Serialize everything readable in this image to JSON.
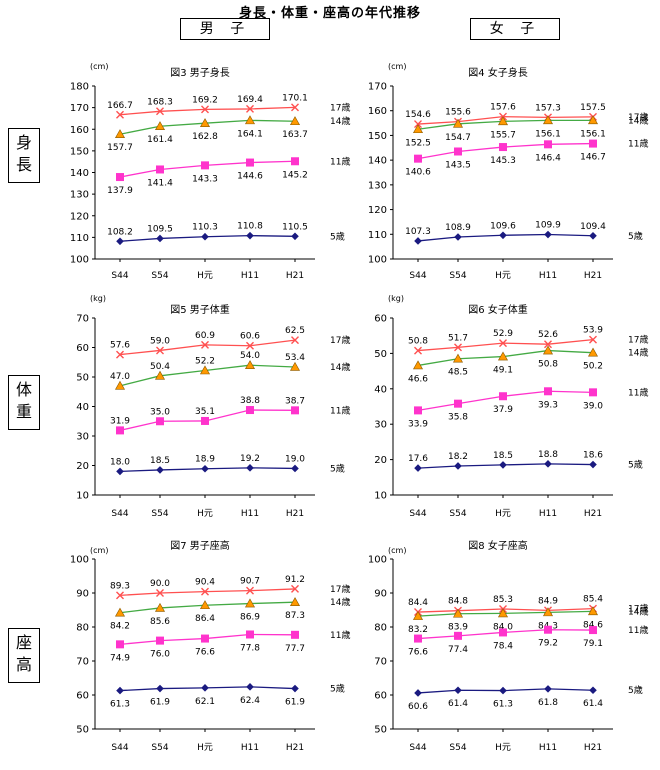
{
  "page_title": "身長・体重・座高の年代推移",
  "gender_labels": {
    "male": "男 子",
    "female": "女 子"
  },
  "row_labels": {
    "height": "身長",
    "weight": "体重",
    "sitting": "座高"
  },
  "colors": {
    "age17": "#ff5050",
    "age14": "#44aa44",
    "age14_marker": "#ff9900",
    "age11": "#ff33cc",
    "age5": "#1a1a80"
  },
  "chart_data": [
    {
      "id": "fig3",
      "type": "line",
      "title": "図3 男子身長",
      "unit": "(cm)",
      "categories": [
        "S44",
        "S54",
        "H元",
        "H11",
        "H21"
      ],
      "ylim": [
        100,
        180
      ],
      "ystep": 10,
      "yticks": [
        "100",
        "110",
        "120",
        "130",
        "140",
        "150",
        "160",
        "170",
        "180"
      ],
      "series": [
        {
          "name": "17歳",
          "values": [
            166.7,
            168.3,
            169.2,
            169.4,
            170.1
          ],
          "labels": [
            "166.7",
            "168.3",
            "169.2",
            "169.4",
            "170.1"
          ],
          "label_pos": "above"
        },
        {
          "name": "14歳",
          "values": [
            157.7,
            161.4,
            162.8,
            164.1,
            163.7
          ],
          "labels": [
            "157.7",
            "161.4",
            "162.8",
            "164.1",
            "163.7"
          ],
          "label_pos": "below"
        },
        {
          "name": "11歳",
          "values": [
            137.9,
            141.4,
            143.3,
            144.6,
            145.2
          ],
          "labels": [
            "137.9",
            "141.4",
            "143.3",
            "144.6",
            "145.2"
          ],
          "label_pos": "below"
        },
        {
          "name": "5歳",
          "values": [
            108.2,
            109.5,
            110.3,
            110.8,
            110.5
          ],
          "labels": [
            "108.2",
            "109.5",
            "110.3",
            "110.8",
            "110.5"
          ],
          "label_pos": "above"
        }
      ]
    },
    {
      "id": "fig4",
      "type": "line",
      "title": "図4 女子身長",
      "unit": "(cm)",
      "categories": [
        "S44",
        "S54",
        "H元",
        "H11",
        "H21"
      ],
      "ylim": [
        100,
        170
      ],
      "ystep": 10,
      "yticks": [
        "100",
        "110",
        "120",
        "130",
        "140",
        "150",
        "160",
        "170"
      ],
      "series": [
        {
          "name": "17歳",
          "values": [
            154.6,
            155.6,
            157.6,
            157.3,
            157.5
          ],
          "labels": [
            "154.6",
            "155.6",
            "157.6",
            "157.3",
            "157.5"
          ],
          "label_pos": "above"
        },
        {
          "name": "14歳",
          "values": [
            152.5,
            154.7,
            155.7,
            156.1,
            156.1
          ],
          "labels": [
            "152.5",
            "154.7",
            "155.7",
            "156.1",
            "156.1"
          ],
          "label_pos": "below"
        },
        {
          "name": "11歳",
          "values": [
            140.6,
            143.5,
            145.3,
            146.4,
            146.7
          ],
          "labels": [
            "140.6",
            "143.5",
            "145.3",
            "146.4",
            "146.7"
          ],
          "label_pos": "below"
        },
        {
          "name": "5歳",
          "values": [
            107.3,
            108.9,
            109.6,
            109.9,
            109.4
          ],
          "labels": [
            "107.3",
            "108.9",
            "109.6",
            "109.9",
            "109.4"
          ],
          "label_pos": "above"
        }
      ]
    },
    {
      "id": "fig5",
      "type": "line",
      "title": "図5 男子体重",
      "unit": "(kg)",
      "categories": [
        "S44",
        "S54",
        "H元",
        "H11",
        "H21"
      ],
      "ylim": [
        10,
        70
      ],
      "ystep": 10,
      "yticks": [
        "10",
        "20",
        "30",
        "40",
        "50",
        "60",
        "70"
      ],
      "series": [
        {
          "name": "17歳",
          "values": [
            57.6,
            59.0,
            60.9,
            60.6,
            62.5
          ],
          "labels": [
            "57.6",
            "59.0",
            "60.9",
            "60.6",
            "62.5"
          ],
          "label_pos": "above"
        },
        {
          "name": "14歳",
          "values": [
            47.0,
            50.4,
            52.2,
            54.0,
            53.4
          ],
          "labels": [
            "47.0",
            "50.4",
            "52.2",
            "54.0",
            "53.4"
          ],
          "label_pos": "above"
        },
        {
          "name": "11歳",
          "values": [
            31.9,
            35.0,
            35.1,
            38.8,
            38.7
          ],
          "labels": [
            "31.9",
            "35.0",
            "35.1",
            "38.8",
            "38.7"
          ],
          "label_pos": "above"
        },
        {
          "name": "5歳",
          "values": [
            18.0,
            18.5,
            18.9,
            19.2,
            19.0
          ],
          "labels": [
            "18.0",
            "18.5",
            "18.9",
            "19.2",
            "19.0"
          ],
          "label_pos": "above"
        }
      ]
    },
    {
      "id": "fig6",
      "type": "line",
      "title": "図6 女子体重",
      "unit": "(kg)",
      "categories": [
        "S44",
        "S54",
        "H元",
        "H11",
        "H21"
      ],
      "ylim": [
        10,
        60
      ],
      "ystep": 10,
      "yticks": [
        "10",
        "20",
        "30",
        "40",
        "50",
        "60"
      ],
      "series": [
        {
          "name": "17歳",
          "values": [
            50.8,
            51.7,
            52.9,
            52.6,
            53.9
          ],
          "labels": [
            "50.8",
            "51.7",
            "52.9",
            "52.6",
            "53.9"
          ],
          "label_pos": "above"
        },
        {
          "name": "14歳",
          "values": [
            46.6,
            48.5,
            49.1,
            50.8,
            50.2
          ],
          "labels": [
            "46.6",
            "48.5",
            "49.1",
            "50.8",
            "50.2"
          ],
          "label_pos": "below"
        },
        {
          "name": "11歳",
          "values": [
            33.9,
            35.8,
            37.9,
            39.3,
            39.0
          ],
          "labels": [
            "33.9",
            "35.8",
            "37.9",
            "39.3",
            "39.0"
          ],
          "label_pos": "below"
        },
        {
          "name": "5歳",
          "values": [
            17.6,
            18.2,
            18.5,
            18.8,
            18.6
          ],
          "labels": [
            "17.6",
            "18.2",
            "18.5",
            "18.8",
            "18.6"
          ],
          "label_pos": "above"
        }
      ]
    },
    {
      "id": "fig7",
      "type": "line",
      "title": "図7 男子座高",
      "unit": "(cm)",
      "categories": [
        "S44",
        "S54",
        "H元",
        "H11",
        "H21"
      ],
      "ylim": [
        50,
        100
      ],
      "ystep": 10,
      "yticks": [
        "50",
        "60",
        "70",
        "80",
        "90",
        "100"
      ],
      "series": [
        {
          "name": "17歳",
          "values": [
            89.3,
            90.0,
            90.4,
            90.7,
            91.2
          ],
          "labels": [
            "89.3",
            "90.0",
            "90.4",
            "90.7",
            "91.2"
          ],
          "label_pos": "above"
        },
        {
          "name": "14歳",
          "values": [
            84.2,
            85.6,
            86.4,
            86.9,
            87.3
          ],
          "labels": [
            "84.2",
            "85.6",
            "86.4",
            "86.9",
            "87.3"
          ],
          "label_pos": "below"
        },
        {
          "name": "11歳",
          "values": [
            74.9,
            76.0,
            76.6,
            77.8,
            77.7
          ],
          "labels": [
            "74.9",
            "76.0",
            "76.6",
            "77.8",
            "77.7"
          ],
          "label_pos": "below"
        },
        {
          "name": "5歳",
          "values": [
            61.3,
            61.9,
            62.1,
            62.4,
            61.9
          ],
          "labels": [
            "61.3",
            "61.9",
            "62.1",
            "62.4",
            "61.9"
          ],
          "label_pos": "below"
        }
      ]
    },
    {
      "id": "fig8",
      "type": "line",
      "title": "図8 女子座高",
      "unit": "(cm)",
      "categories": [
        "S44",
        "S54",
        "H元",
        "H11",
        "H21"
      ],
      "ylim": [
        50,
        100
      ],
      "ystep": 10,
      "yticks": [
        "50",
        "60",
        "70",
        "80",
        "90",
        "100"
      ],
      "series": [
        {
          "name": "17歳",
          "values": [
            84.4,
            84.8,
            85.3,
            84.9,
            85.4
          ],
          "labels": [
            "84.4",
            "84.8",
            "85.3",
            "84.9",
            "85.4"
          ],
          "label_pos": "above"
        },
        {
          "name": "14歳",
          "values": [
            83.2,
            83.9,
            84.0,
            84.3,
            84.6
          ],
          "labels": [
            "83.2",
            "83.9",
            "84.0",
            "84.3",
            "84.6"
          ],
          "label_pos": "below"
        },
        {
          "name": "11歳",
          "values": [
            76.6,
            77.4,
            78.4,
            79.2,
            79.1
          ],
          "labels": [
            "76.6",
            "77.4",
            "78.4",
            "79.2",
            "79.1"
          ],
          "label_pos": "below"
        },
        {
          "name": "5歳",
          "values": [
            60.6,
            61.4,
            61.3,
            61.8,
            61.4
          ],
          "labels": [
            "60.6",
            "61.4",
            "61.3",
            "61.8",
            "61.4"
          ],
          "label_pos": "below"
        }
      ]
    }
  ]
}
